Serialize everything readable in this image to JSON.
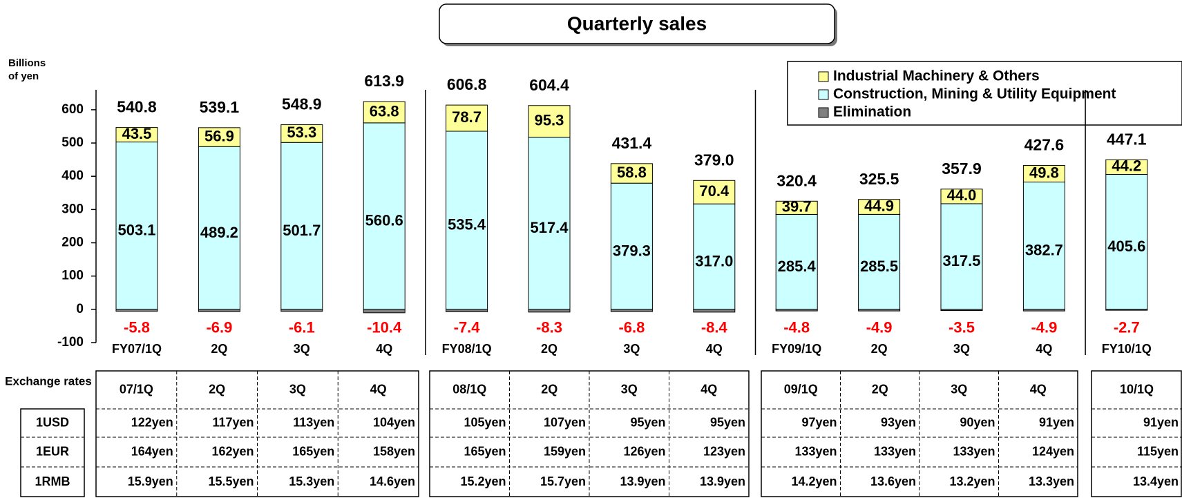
{
  "chart_data": {
    "type": "stacked_bar",
    "title": "Quarterly sales",
    "y_label": "Billions of yen",
    "categories": [
      "FY07/1Q",
      "2Q",
      "3Q",
      "4Q",
      "FY08/1Q",
      "2Q",
      "3Q",
      "4Q",
      "FY09/1Q",
      "2Q",
      "3Q",
      "4Q",
      "FY10/1Q"
    ],
    "series": [
      {
        "name": "Elimination",
        "color": "#808080",
        "values": [
          -5.8,
          -6.9,
          -6.1,
          -10.4,
          -7.4,
          -8.3,
          -6.8,
          -8.4,
          -4.8,
          -4.9,
          -3.5,
          -4.9,
          -2.7
        ]
      },
      {
        "name": "Construction, Mining & Utility Equipment",
        "color": "#ccffff",
        "values": [
          503.1,
          489.2,
          501.7,
          560.6,
          535.4,
          517.4,
          379.3,
          317.0,
          285.4,
          285.5,
          317.5,
          382.7,
          405.6
        ],
        "value_labels": [
          "503.1",
          "489.2",
          "501.7",
          "560.6",
          "535.4",
          "517.4",
          "379.3",
          "317.0",
          "285.4",
          "285.5",
          "317.5",
          "382.7",
          "405.6"
        ]
      },
      {
        "name": "Industrial Machinery & Others",
        "color": "#ffff99",
        "values": [
          43.5,
          56.9,
          53.3,
          63.8,
          78.7,
          95.3,
          58.8,
          70.4,
          39.7,
          44.9,
          44.0,
          49.8,
          44.2
        ],
        "value_labels": [
          "43.5",
          "56.9",
          "53.3",
          "63.8",
          "78.7",
          "95.3",
          "58.8",
          "70.4",
          "39.7",
          "44.9",
          "44.0",
          "49.8",
          "44.2"
        ]
      }
    ],
    "totals": [
      "540.8",
      "539.1",
      "548.9",
      "613.9",
      "606.8",
      "604.4",
      "431.4",
      "379.0",
      "320.4",
      "325.5",
      "357.9",
      "427.6",
      "447.1"
    ],
    "ylim": [
      -100,
      660
    ],
    "yticks": [
      -100,
      0,
      100,
      200,
      300,
      400,
      500,
      600
    ],
    "legend": "upper right"
  },
  "table": {
    "header_label": "Exchange rates",
    "columns": [
      "07/1Q",
      "2Q",
      "3Q",
      "4Q",
      "08/1Q",
      "2Q",
      "3Q",
      "4Q",
      "09/1Q",
      "2Q",
      "3Q",
      "4Q",
      "10/1Q"
    ],
    "rows": [
      {
        "label": "1USD",
        "values": [
          "122yen",
          "117yen",
          "113yen",
          "104yen",
          "105yen",
          "107yen",
          "95yen",
          "95yen",
          "97yen",
          "93yen",
          "90yen",
          "91yen",
          "91yen"
        ]
      },
      {
        "label": "1EUR",
        "values": [
          "164yen",
          "162yen",
          "165yen",
          "158yen",
          "165yen",
          "159yen",
          "126yen",
          "123yen",
          "133yen",
          "133yen",
          "133yen",
          "124yen",
          "115yen"
        ]
      },
      {
        "label": "1RMB",
        "values": [
          "15.9yen",
          "15.5yen",
          "15.3yen",
          "14.6yen",
          "15.2yen",
          "15.7yen",
          "13.9yen",
          "13.9yen",
          "14.2yen",
          "13.6yen",
          "13.2yen",
          "13.3yen",
          "13.4yen"
        ]
      }
    ]
  }
}
